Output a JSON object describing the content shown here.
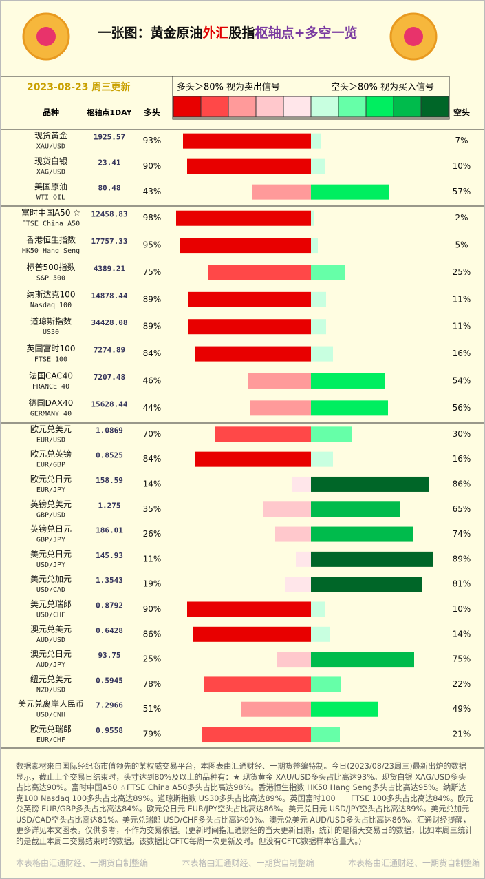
{
  "header": {
    "title": [
      {
        "text": "一张图：黄金原油",
        "color": "#111111"
      },
      {
        "text": "外汇",
        "color": "#e00000"
      },
      {
        "text": "股指",
        "color": "#111111"
      },
      {
        "text": "枢轴点+多空一览",
        "color": "#7a3aa0"
      }
    ],
    "date": "2023-08-23 周三更新",
    "legend_long": "多头＞80% 视为卖出信号",
    "legend_short": "空头＞80% 视为买入信号",
    "legend_colors": [
      "#e80000",
      "#ff4848",
      "#ff9a9a",
      "#ffc8cc",
      "#ffe6ea",
      "#c8ffe0",
      "#66ffa8",
      "#00ee60",
      "#00bb4c",
      "#006628"
    ]
  },
  "columns": {
    "name": "品种",
    "pivot": "枢轴点1DAY",
    "long": "多头",
    "short": "空头"
  },
  "groups": [
    {
      "rows": [
        {
          "name": "现货黄金",
          "code": "XAU/USD",
          "pivot": "1925.57",
          "long": 93,
          "long_label": "93%",
          "short": 7,
          "short_label": "7%"
        },
        {
          "name": "现货白银",
          "code": "XAG/USD",
          "pivot": "23.41",
          "long": 90,
          "long_label": "90%",
          "short": 10,
          "short_label": "10%"
        },
        {
          "name": "美国原油",
          "code": "WTI OIL",
          "pivot": "80.48",
          "long": 43,
          "long_label": "43%",
          "short": 57,
          "short_label": "57%"
        }
      ]
    },
    {
      "rows": [
        {
          "name": "富时中国A50 ☆",
          "code": "FTSE China A50",
          "pivot": "12458.83",
          "long": 98,
          "long_label": "98%",
          "short": 2,
          "short_label": "2%"
        },
        {
          "name": "香港恒生指数",
          "code": "HK50 Hang Seng",
          "pivot": "17757.33",
          "long": 95,
          "long_label": "95%",
          "short": 5,
          "short_label": "5%"
        },
        {
          "name": "标普500指数",
          "code": "S&P 500",
          "pivot": "4389.21",
          "long": 75,
          "long_label": "75%",
          "short": 25,
          "short_label": "25%"
        },
        {
          "name": "纳斯达克100",
          "code": "Nasdaq 100",
          "pivot": "14878.44",
          "long": 89,
          "long_label": "89%",
          "short": 11,
          "short_label": "11%"
        },
        {
          "name": "道琼斯指数",
          "code": "US30",
          "pivot": "34428.08",
          "long": 89,
          "long_label": "89%",
          "short": 11,
          "short_label": "11%"
        },
        {
          "name": "英国富时100",
          "code": "FTSE 100",
          "pivot": "7274.89",
          "long": 84,
          "long_label": "84%",
          "short": 16,
          "short_label": "16%"
        },
        {
          "name": "法国CAC40",
          "code": "FRANCE 40",
          "pivot": "7207.48",
          "long": 46,
          "long_label": "46%",
          "short": 54,
          "short_label": "54%"
        },
        {
          "name": "德国DAX40",
          "code": "GERMANY 40",
          "pivot": "15628.44",
          "long": 44,
          "long_label": "44%",
          "short": 56,
          "short_label": "56%"
        }
      ]
    },
    {
      "rows": [
        {
          "name": "欧元兑美元",
          "code": "EUR/USD",
          "pivot": "1.0869",
          "long": 70,
          "long_label": "70%",
          "short": 30,
          "short_label": "30%"
        },
        {
          "name": "欧元兑英镑",
          "code": "EUR/GBP",
          "pivot": "0.8525",
          "long": 84,
          "long_label": "84%",
          "short": 16,
          "short_label": "16%"
        },
        {
          "name": "欧元兑日元",
          "code": "EUR/JPY",
          "pivot": "158.59",
          "long": 14,
          "long_label": "14%",
          "short": 86,
          "short_label": "86%"
        },
        {
          "name": "英镑兑美元",
          "code": "GBP/USD",
          "pivot": "1.275",
          "long": 35,
          "long_label": "35%",
          "short": 65,
          "short_label": "65%"
        },
        {
          "name": "英镑兑日元",
          "code": "GBP/JPY",
          "pivot": "186.01",
          "long": 26,
          "long_label": "26%",
          "short": 74,
          "short_label": "74%"
        },
        {
          "name": "美元兑日元",
          "code": "USD/JPY",
          "pivot": "145.93",
          "long": 11,
          "long_label": "11%",
          "short": 89,
          "short_label": "89%"
        },
        {
          "name": "美元兑加元",
          "code": "USD/CAD",
          "pivot": "1.3543",
          "long": 19,
          "long_label": "19%",
          "short": 81,
          "short_label": "81%"
        },
        {
          "name": "美元兑瑞郎",
          "code": "USD/CHF",
          "pivot": "0.8792",
          "long": 90,
          "long_label": "90%",
          "short": 10,
          "short_label": "10%"
        },
        {
          "name": "澳元兑美元",
          "code": "AUD/USD",
          "pivot": "0.6428",
          "long": 86,
          "long_label": "86%",
          "short": 14,
          "short_label": "14%"
        },
        {
          "name": "澳元兑日元",
          "code": "AUD/JPY",
          "pivot": "93.75",
          "long": 25,
          "long_label": "25%",
          "short": 75,
          "short_label": "75%"
        },
        {
          "name": "纽元兑美元",
          "code": "NZD/USD",
          "pivot": "0.5945",
          "long": 78,
          "long_label": "78%",
          "short": 22,
          "short_label": "22%"
        },
        {
          "name": "美元兑离岸人民币",
          "code": "USD/CNH",
          "pivot": "7.2966",
          "long": 51,
          "long_label": "51%",
          "short": 49,
          "short_label": "49%"
        },
        {
          "name": "欧元兑瑞郎",
          "code": "EUR/CHF",
          "pivot": "0.9558",
          "long": 79,
          "long_label": "79%",
          "short": 21,
          "short_label": "21%"
        }
      ]
    }
  ],
  "footer": {
    "note": "数据素材来自国际经纪商市值领先的某权威交易平台，本图表由汇通财经、一期货整编特制。今日(2023/08/23周三)最新出炉的数据显示，截止上个交易日结束时，头寸达到80%及以上的品种有：★ 现货黄金 XAU/USD多头占比高达93%。现货白银 XAG/USD多头占比高达90%。富时中国A50 ☆FTSE China A50多头占比高达98%。香港恒生指数 HK50 Hang Seng多头占比高达95%。纳斯达克100 Nasdaq 100多头占比高达89%。道琼斯指数 US30多头占比高达89%。英国富时100　　FTSE 100多头占比高达84%。欧元兑英镑 EUR/GBP多头占比高达84%。欧元兑日元 EUR/JPY空头占比高达86%。美元兑日元 USD/JPY空头占比高达89%。美元兑加元 USD/CAD空头占比高达81%。美元兑瑞郎 USD/CHF多头占比高达90%。澳元兑美元 AUD/USD多头占比高达86%。汇通财经提醒，更多详见本文图表。仅供参考，不作为交易依据。(更新时间指汇通财经的当天更新日期，统计的是隔天交易日的数据，比如本周三统计的是截止本周二交易结束时的数据。该数据比CFTC每周一次更新及时。但没有CFTC数据样本容量大。)",
    "credits": [
      "本表格由汇通财经、一期货自制整编",
      "本表格由汇通财经、一期货自制整编",
      "本表格由汇通财经、一期货自制整编"
    ]
  }
}
